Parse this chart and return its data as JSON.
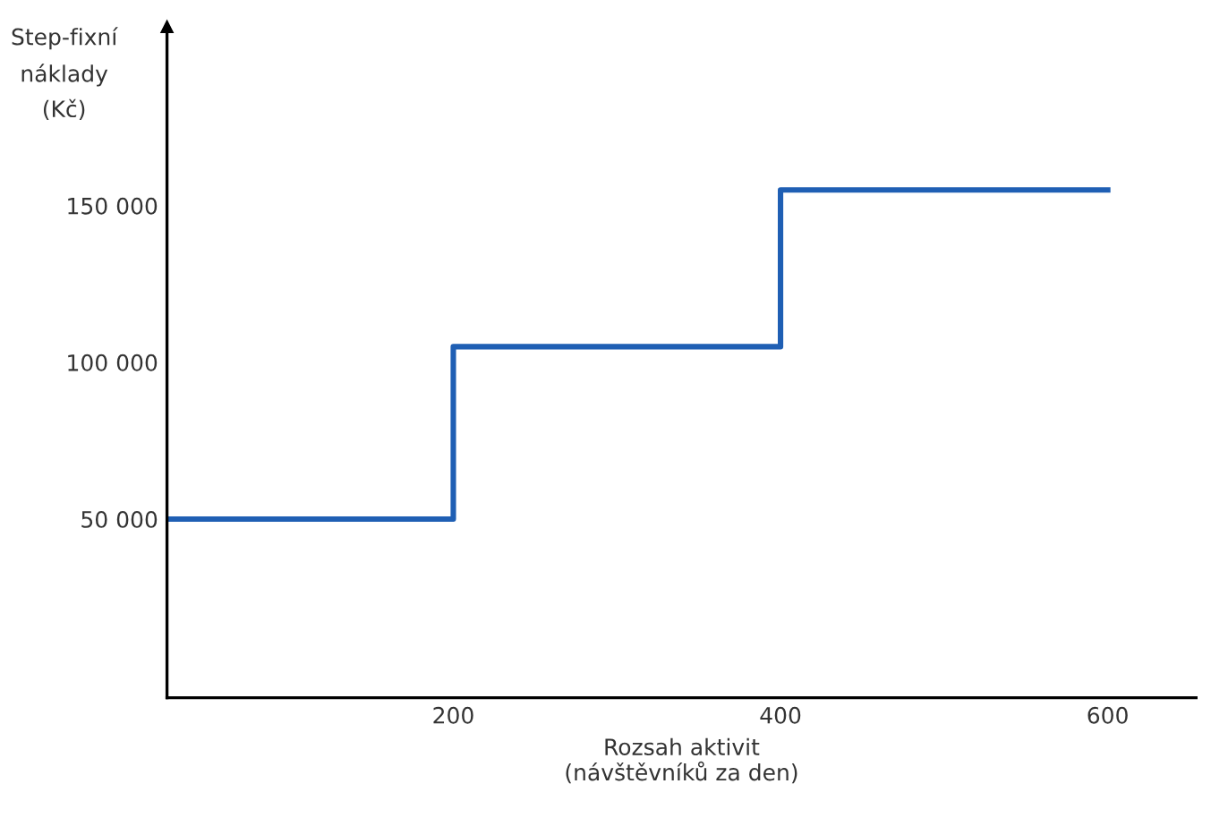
{
  "chart_data": {
    "type": "step",
    "ylabel": "Step-fixní\nnáklady\n(Kč)",
    "xlabel": "Rozsah aktivit\n(návštěvníků za den)",
    "x": [
      25,
      200,
      400,
      600
    ],
    "series": [
      {
        "color": "#1f5fb4",
        "values": [
          50000,
          105000,
          155000,
          155000
        ]
      }
    ],
    "xlim": [
      25,
      654
    ],
    "ylim": [
      -7000,
      207000
    ],
    "xticks": [
      200,
      400,
      600
    ],
    "yticks": [
      {
        "value": 50000,
        "label": "50 000"
      },
      {
        "value": 100000,
        "label": "100 000"
      },
      {
        "value": 150000,
        "label": "150 000"
      }
    ],
    "grid": false,
    "legend": false
  }
}
